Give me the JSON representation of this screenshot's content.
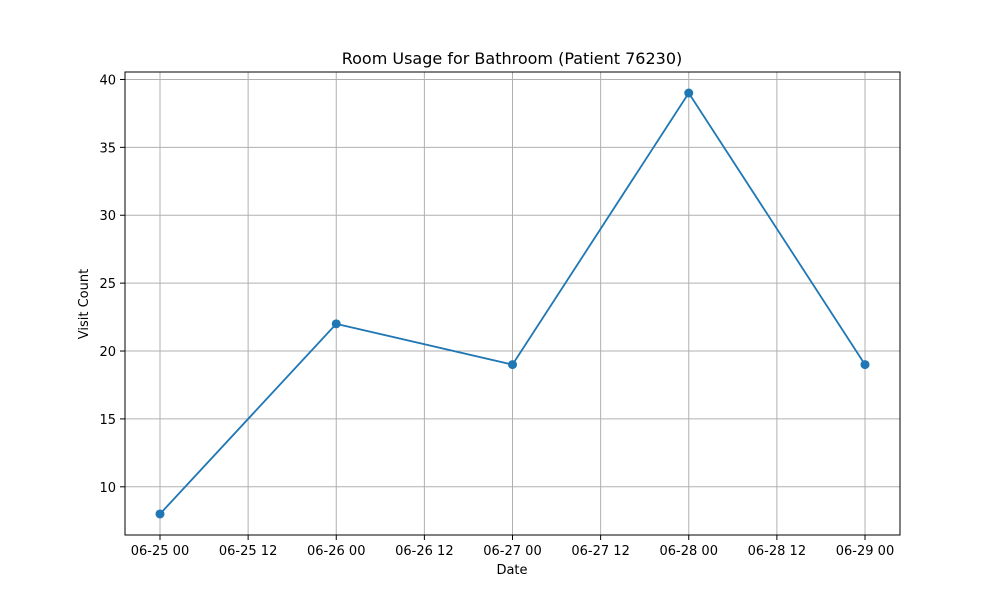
{
  "chart_data": {
    "type": "line",
    "title": "Room Usage for Bathroom (Patient 76230)",
    "xlabel": "Date",
    "ylabel": "Visit Count",
    "x": [
      "06-25 00",
      "06-26 00",
      "06-27 00",
      "06-28 00",
      "06-29 00"
    ],
    "series": [
      {
        "values": [
          8,
          22,
          19,
          39,
          19
        ]
      }
    ],
    "x_ticks": [
      "06-25 00",
      "06-25 12",
      "06-26 00",
      "06-26 12",
      "06-27 00",
      "06-27 12",
      "06-28 00",
      "06-28 12",
      "06-29 00"
    ],
    "y_ticks": [
      10,
      15,
      20,
      25,
      30,
      35,
      40
    ],
    "ylim": [
      6.45,
      40.55
    ],
    "grid": true,
    "colors": {
      "line": "#1f77b4",
      "grid": "#b0b0b0",
      "axis": "#000000"
    }
  }
}
